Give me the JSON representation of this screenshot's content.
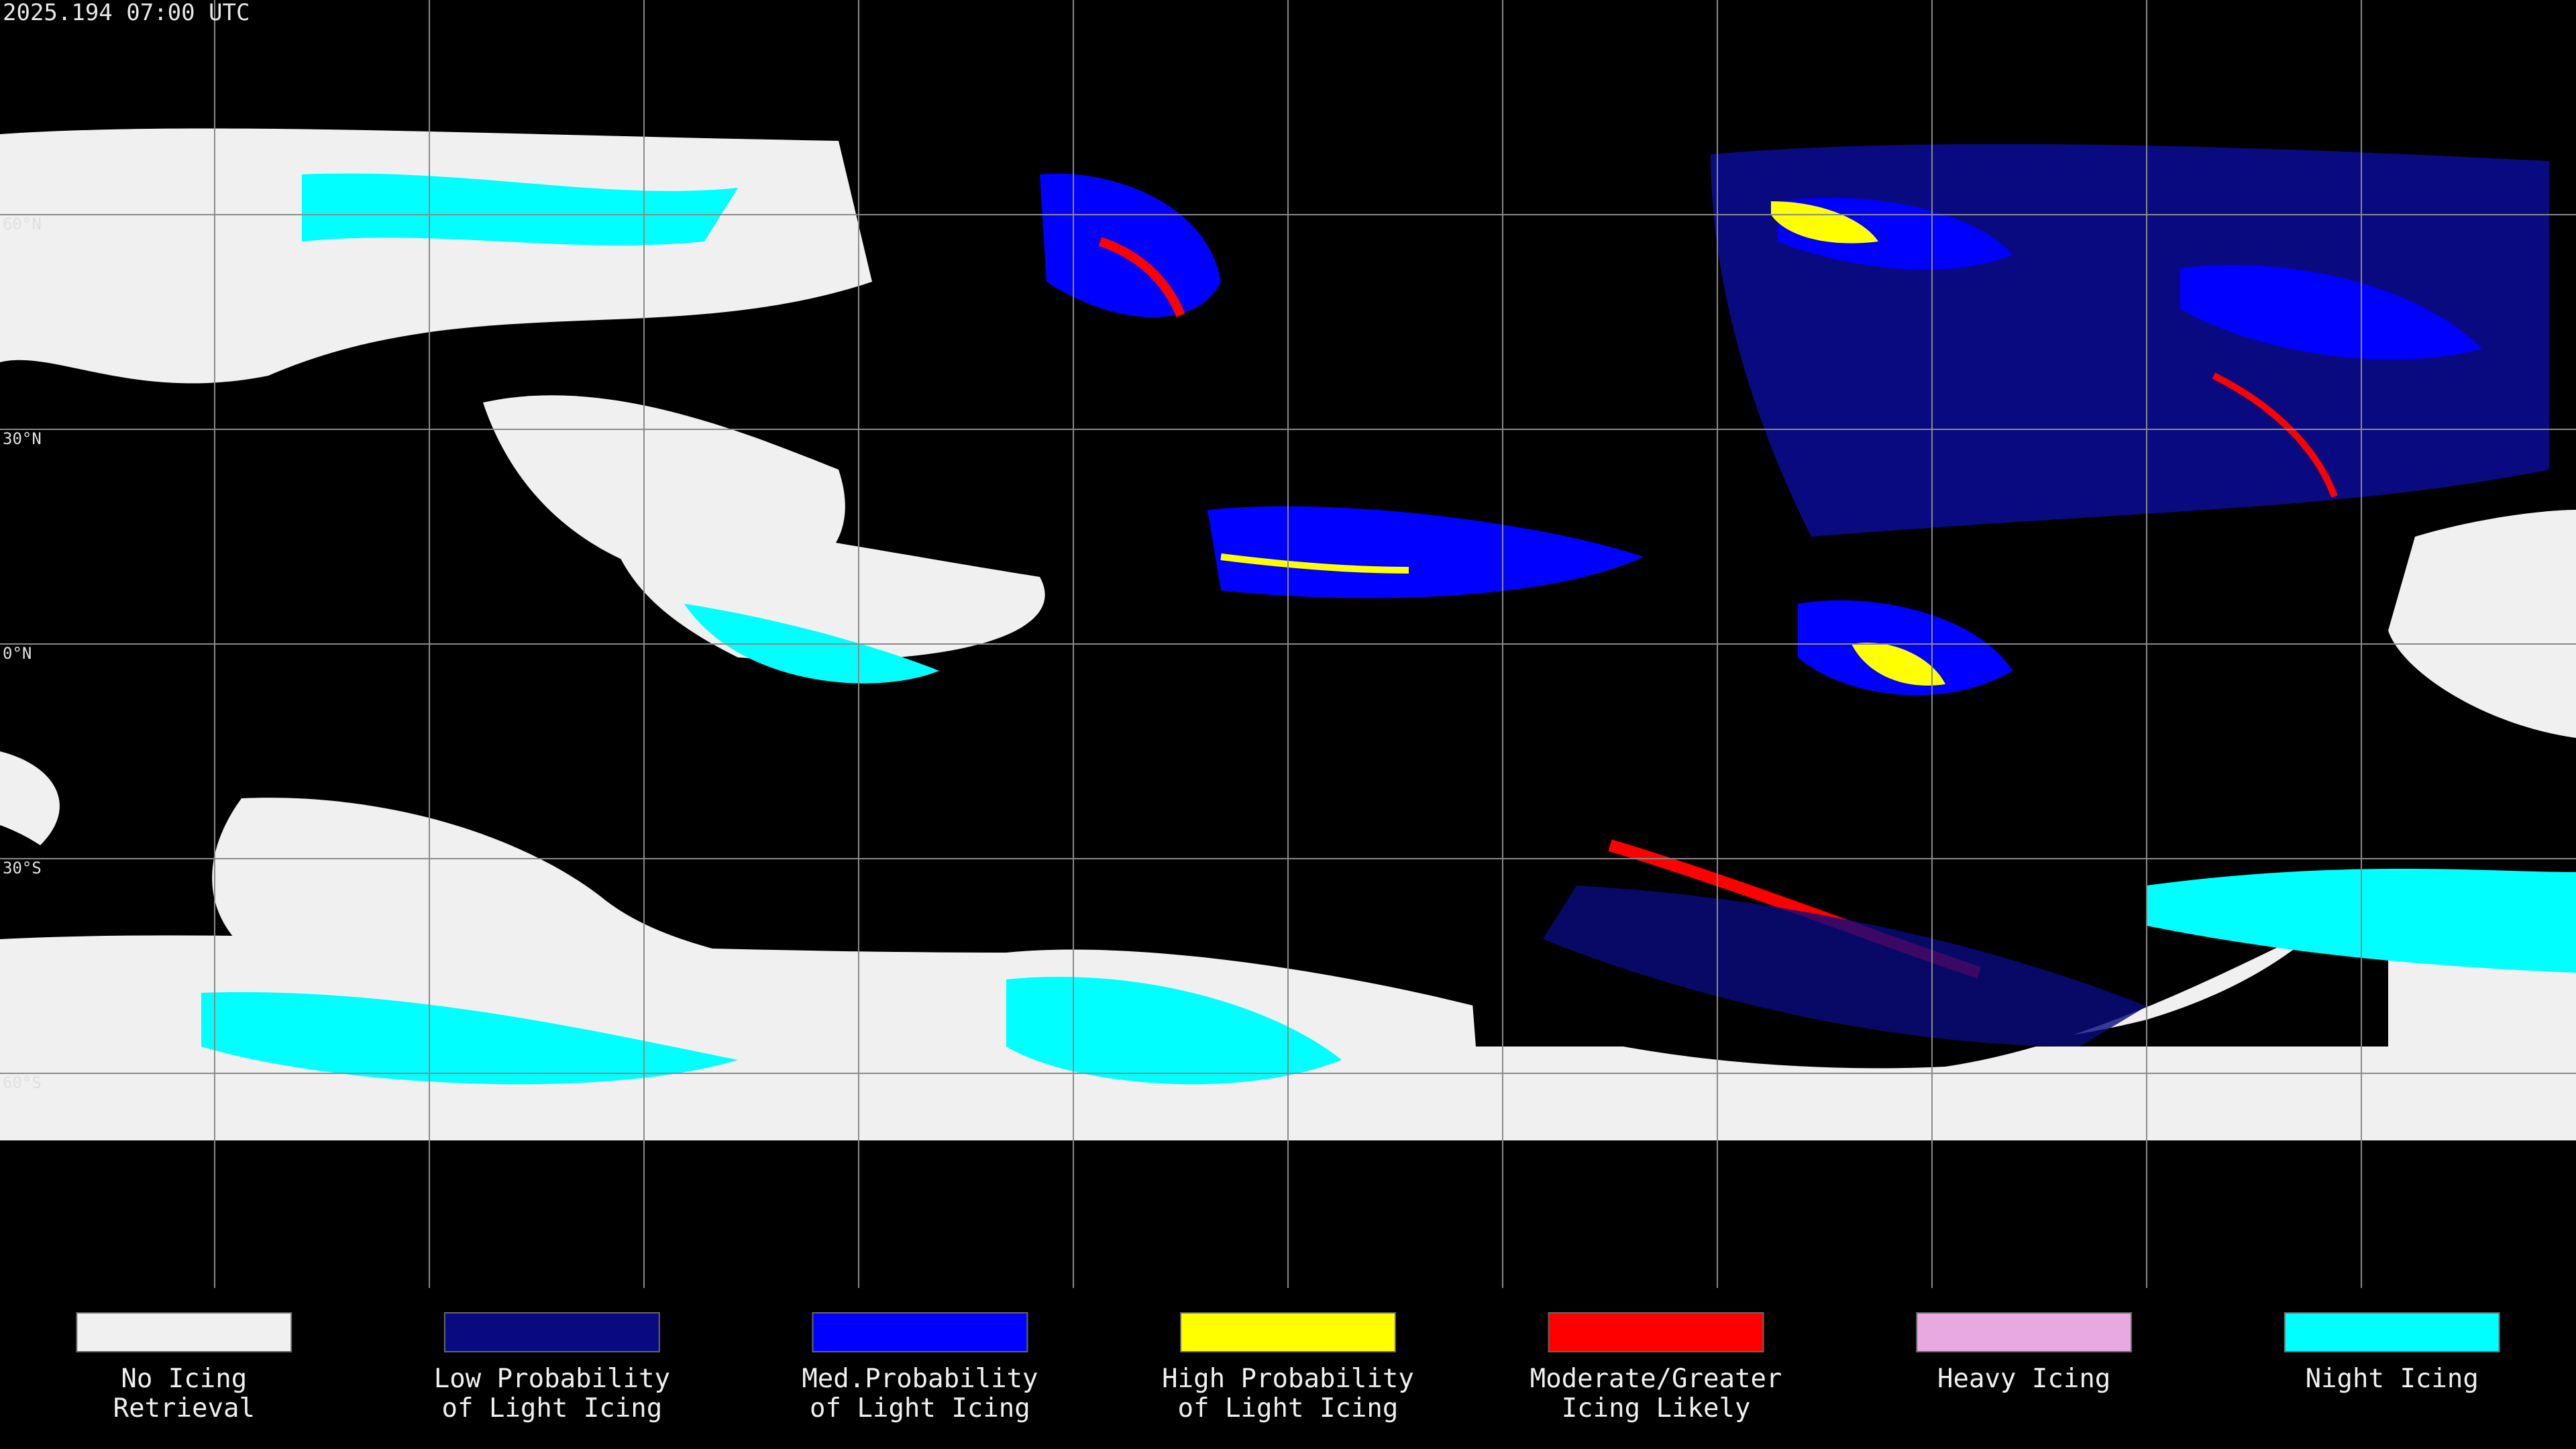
{
  "header": {
    "title": "2025.194 07:00 UTC"
  },
  "latitude_labels": [
    "60°N",
    "30°N",
    "0°N",
    "30°S",
    "60°S"
  ],
  "legend": [
    {
      "color": "#f0f0f0",
      "lines": [
        "No Icing",
        "Retrieval"
      ]
    },
    {
      "color": "#0a0a80",
      "lines": [
        "Low Probability",
        "of Light Icing"
      ]
    },
    {
      "color": "#0000ff",
      "lines": [
        "Med.Probability",
        "of Light Icing"
      ]
    },
    {
      "color": "#ffff00",
      "lines": [
        "High Probability",
        "of Light Icing"
      ]
    },
    {
      "color": "#ff0000",
      "lines": [
        "Moderate/Greater",
        "Icing Likely"
      ]
    },
    {
      "color": "#e8a8e0",
      "lines": [
        "Heavy Icing"
      ]
    },
    {
      "color": "#00ffff",
      "lines": [
        "Night Icing"
      ]
    }
  ]
}
